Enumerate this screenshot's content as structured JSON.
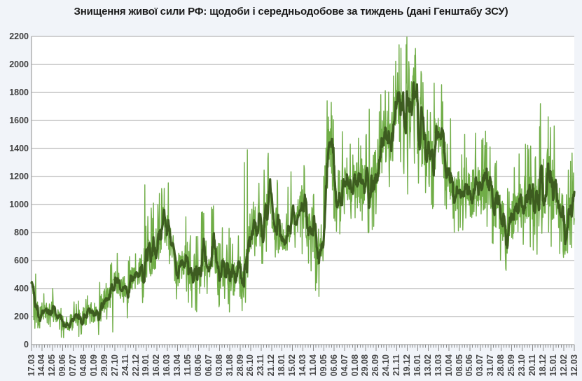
{
  "title": "Знищення живої сили РФ: щодоби і середньодобове за тиждень (дані Генштабу ЗСУ)",
  "colors": {
    "page_background": "#f1f4f9",
    "plot_background": "#ffffff",
    "gridline": "#a6a6a6",
    "axis": "#8c8c8c",
    "tick": "#8c8c8c",
    "label_text": "#3f3f3f",
    "title_text": "#1b1b1b",
    "daily_series": "#70ad47",
    "weekly_average_series": "#3d5c20"
  },
  "chart_data": {
    "type": "line",
    "title": "Знищення живої сили РФ: щодоби і середньодобове за тиждень (дані Генштабу ЗСУ)",
    "xlabel": "",
    "ylabel": "",
    "ylim": [
      0,
      2200
    ],
    "y_tick_step": 200,
    "y_tick_labels": [
      "0",
      "200",
      "400",
      "600",
      "800",
      "1000",
      "1200",
      "1400",
      "1600",
      "1800",
      "2000",
      "2200"
    ],
    "grid": true,
    "legend": "none",
    "x_axis": {
      "tick_labels": [
        "17.03",
        "14.04",
        "12.05",
        "09.06",
        "07.07",
        "04.08",
        "01.09",
        "29.09",
        "27.10",
        "24.11",
        "22.12",
        "19.01",
        "16.02",
        "16.03",
        "13.04",
        "11.05",
        "08.06",
        "06.07",
        "03.08",
        "31.08",
        "28.09",
        "26.10",
        "23.11",
        "21.12",
        "18.01",
        "15.02",
        "14.03",
        "11.04",
        "09.05",
        "06.06",
        "04.07",
        "01.08",
        "29.08",
        "26.09",
        "24.10",
        "21.11",
        "19.12",
        "16.01",
        "13.02",
        "13.03",
        "10.04",
        "08.05",
        "05.06",
        "03.07",
        "31.07",
        "28.08",
        "25.09",
        "23.10",
        "20.11",
        "18.12",
        "15.01",
        "12.02",
        "12.03"
      ],
      "label_interval_days": 28,
      "minor_tick_days": 7,
      "total_days": 1456
    },
    "series": [
      {
        "name": "щодоби",
        "color": "#70ad47",
        "line_width": 1.4,
        "kind": "daily values"
      },
      {
        "name": "середньодобове за тиждень",
        "color": "#3d5c20",
        "line_width": 3.2,
        "kind": "7-day moving average"
      }
    ],
    "weekly_average_keypoints": [
      [
        0,
        430
      ],
      [
        5,
        360
      ],
      [
        12,
        280
      ],
      [
        17,
        215
      ],
      [
        25,
        200
      ],
      [
        35,
        250
      ],
      [
        44,
        275
      ],
      [
        56,
        250
      ],
      [
        66,
        200
      ],
      [
        78,
        160
      ],
      [
        86,
        135
      ],
      [
        95,
        150
      ],
      [
        105,
        165
      ],
      [
        118,
        175
      ],
      [
        133,
        190
      ],
      [
        148,
        210
      ],
      [
        162,
        225
      ],
      [
        175,
        225
      ],
      [
        186,
        260
      ],
      [
        199,
        345
      ],
      [
        206,
        370
      ],
      [
        212,
        355
      ],
      [
        222,
        420
      ],
      [
        232,
        435
      ],
      [
        240,
        410
      ],
      [
        250,
        370
      ],
      [
        262,
        415
      ],
      [
        275,
        460
      ],
      [
        287,
        480
      ],
      [
        294,
        510
      ],
      [
        305,
        570
      ],
      [
        313,
        620
      ],
      [
        324,
        650
      ],
      [
        332,
        680
      ],
      [
        345,
        775
      ],
      [
        356,
        820
      ],
      [
        363,
        845
      ],
      [
        372,
        790
      ],
      [
        380,
        640
      ],
      [
        393,
        515
      ],
      [
        404,
        560
      ],
      [
        417,
        610
      ],
      [
        428,
        540
      ],
      [
        442,
        480
      ],
      [
        452,
        620
      ],
      [
        460,
        655
      ],
      [
        470,
        615
      ],
      [
        480,
        640
      ],
      [
        490,
        645
      ],
      [
        500,
        585
      ],
      [
        512,
        545
      ],
      [
        523,
        575
      ],
      [
        535,
        480
      ],
      [
        545,
        475
      ],
      [
        556,
        545
      ],
      [
        563,
        480
      ],
      [
        569,
        390
      ],
      [
        576,
        560
      ],
      [
        582,
        760
      ],
      [
        590,
        860
      ],
      [
        597,
        905
      ],
      [
        605,
        860
      ],
      [
        617,
        880
      ],
      [
        627,
        950
      ],
      [
        639,
        1060
      ],
      [
        646,
        980
      ],
      [
        656,
        840
      ],
      [
        668,
        800
      ],
      [
        680,
        790
      ],
      [
        692,
        860
      ],
      [
        705,
        950
      ],
      [
        713,
        900
      ],
      [
        721,
        1000
      ],
      [
        728,
        950
      ],
      [
        737,
        890
      ],
      [
        749,
        820
      ],
      [
        760,
        740
      ],
      [
        772,
        690
      ],
      [
        778,
        700
      ],
      [
        785,
        1050
      ],
      [
        790,
        1300
      ],
      [
        795,
        1435
      ],
      [
        801,
        1400
      ],
      [
        806,
        1290
      ],
      [
        812,
        1215
      ],
      [
        819,
        1150
      ],
      [
        825,
        1115
      ],
      [
        832,
        1160
      ],
      [
        839,
        1195
      ],
      [
        848,
        1130
      ],
      [
        858,
        1155
      ],
      [
        868,
        1200
      ],
      [
        876,
        1100
      ],
      [
        885,
        1150
      ],
      [
        893,
        1210
      ],
      [
        900,
        1130
      ],
      [
        908,
        1135
      ],
      [
        916,
        1180
      ],
      [
        925,
        1260
      ],
      [
        933,
        1370
      ],
      [
        941,
        1435
      ],
      [
        948,
        1500
      ],
      [
        956,
        1450
      ],
      [
        964,
        1400
      ],
      [
        972,
        1530
      ],
      [
        979,
        1680
      ],
      [
        984,
        1720
      ],
      [
        990,
        1640
      ],
      [
        996,
        1585
      ],
      [
        1003,
        1700
      ],
      [
        1011,
        1800
      ],
      [
        1017,
        1760
      ],
      [
        1022,
        1785
      ],
      [
        1034,
        1600
      ],
      [
        1053,
        1445
      ],
      [
        1068,
        1265
      ],
      [
        1082,
        1450
      ],
      [
        1092,
        1540
      ],
      [
        1105,
        1345
      ],
      [
        1118,
        1245
      ],
      [
        1133,
        1075
      ],
      [
        1150,
        1195
      ],
      [
        1169,
        1035
      ],
      [
        1186,
        1110
      ],
      [
        1205,
        1077
      ],
      [
        1220,
        1145
      ],
      [
        1232,
        1050
      ],
      [
        1243,
        977
      ],
      [
        1256,
        945
      ],
      [
        1268,
        850
      ],
      [
        1276,
        790
      ],
      [
        1288,
        880
      ],
      [
        1300,
        960
      ],
      [
        1310,
        990
      ],
      [
        1319,
        1010
      ],
      [
        1330,
        1040
      ],
      [
        1338,
        1060
      ],
      [
        1347,
        960
      ],
      [
        1362,
        1077
      ],
      [
        1370,
        1130
      ],
      [
        1382,
        1210
      ],
      [
        1392,
        1130
      ],
      [
        1398,
        1077
      ],
      [
        1410,
        1050
      ],
      [
        1420,
        930
      ],
      [
        1429,
        810
      ],
      [
        1437,
        890
      ],
      [
        1446,
        995
      ],
      [
        1456,
        910
      ]
    ],
    "daily_noise_envelope": [
      [
        0,
        130
      ],
      [
        30,
        85
      ],
      [
        80,
        65
      ],
      [
        150,
        70
      ],
      [
        200,
        105
      ],
      [
        260,
        115
      ],
      [
        300,
        135
      ],
      [
        345,
        175
      ],
      [
        400,
        150
      ],
      [
        460,
        160
      ],
      [
        520,
        165
      ],
      [
        569,
        110
      ],
      [
        600,
        195
      ],
      [
        650,
        170
      ],
      [
        720,
        170
      ],
      [
        790,
        210
      ],
      [
        830,
        190
      ],
      [
        880,
        185
      ],
      [
        930,
        195
      ],
      [
        983,
        235
      ],
      [
        1011,
        255
      ],
      [
        1066,
        225
      ],
      [
        1150,
        195
      ],
      [
        1250,
        175
      ],
      [
        1330,
        190
      ],
      [
        1382,
        265
      ],
      [
        1430,
        215
      ],
      [
        1456,
        185
      ]
    ],
    "daily_extremes": [
      [
        0,
        440
      ],
      [
        80,
        52
      ],
      [
        218,
        90
      ],
      [
        304,
        1140
      ],
      [
        443,
        235
      ],
      [
        571,
        1300
      ],
      [
        579,
        1390
      ],
      [
        793,
        1740
      ],
      [
        800,
        1520
      ],
      [
        906,
        1680
      ],
      [
        975,
        1660
      ],
      [
        982,
        1940
      ],
      [
        1007,
        2195
      ],
      [
        1009,
        1075
      ],
      [
        1012,
        2020
      ],
      [
        1045,
        1950
      ],
      [
        1100,
        1855
      ],
      [
        1208,
        1460
      ],
      [
        1325,
        1430
      ],
      [
        1365,
        1720
      ],
      [
        1438,
        655
      ]
    ],
    "noise_seed": 1337,
    "daily_value_range": [
      45,
      2195
    ]
  }
}
